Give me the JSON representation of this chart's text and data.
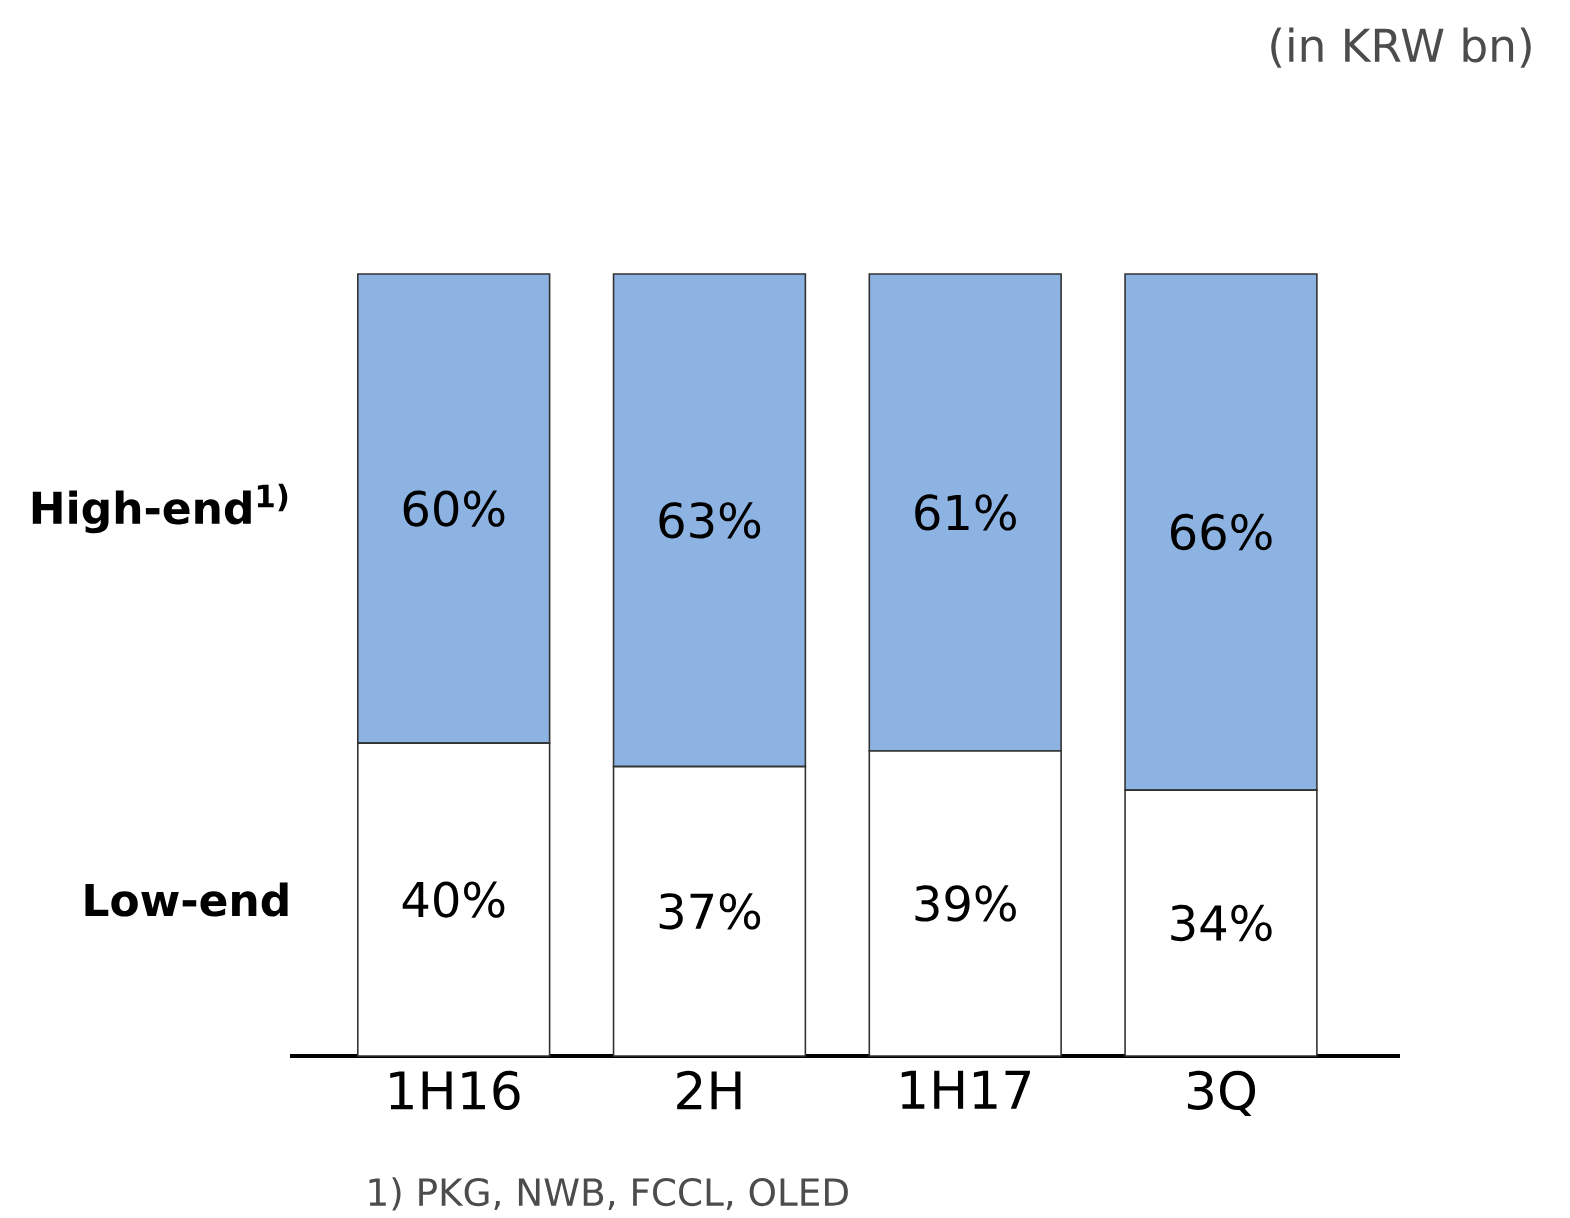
{
  "chart_data": {
    "type": "bar",
    "stacked": true,
    "categories": [
      "1H16",
      "2H",
      "1H17",
      "3Q"
    ],
    "series": [
      {
        "name": "Low-end",
        "color": "#ffffff",
        "values": [
          40,
          37,
          39,
          34
        ],
        "value_labels": [
          "40%",
          "37%",
          "39%",
          "34%"
        ]
      },
      {
        "name": "High-end$^{1)}$",
        "color": "#8db3e2",
        "values": [
          60,
          63,
          61,
          66
        ],
        "value_labels": [
          "60%",
          "63%",
          "61%",
          "66%"
        ]
      }
    ],
    "annotations": [
      "(in KRW bn)",
      "1) PKG, NWB, FCCL, OLED"
    ]
  }
}
